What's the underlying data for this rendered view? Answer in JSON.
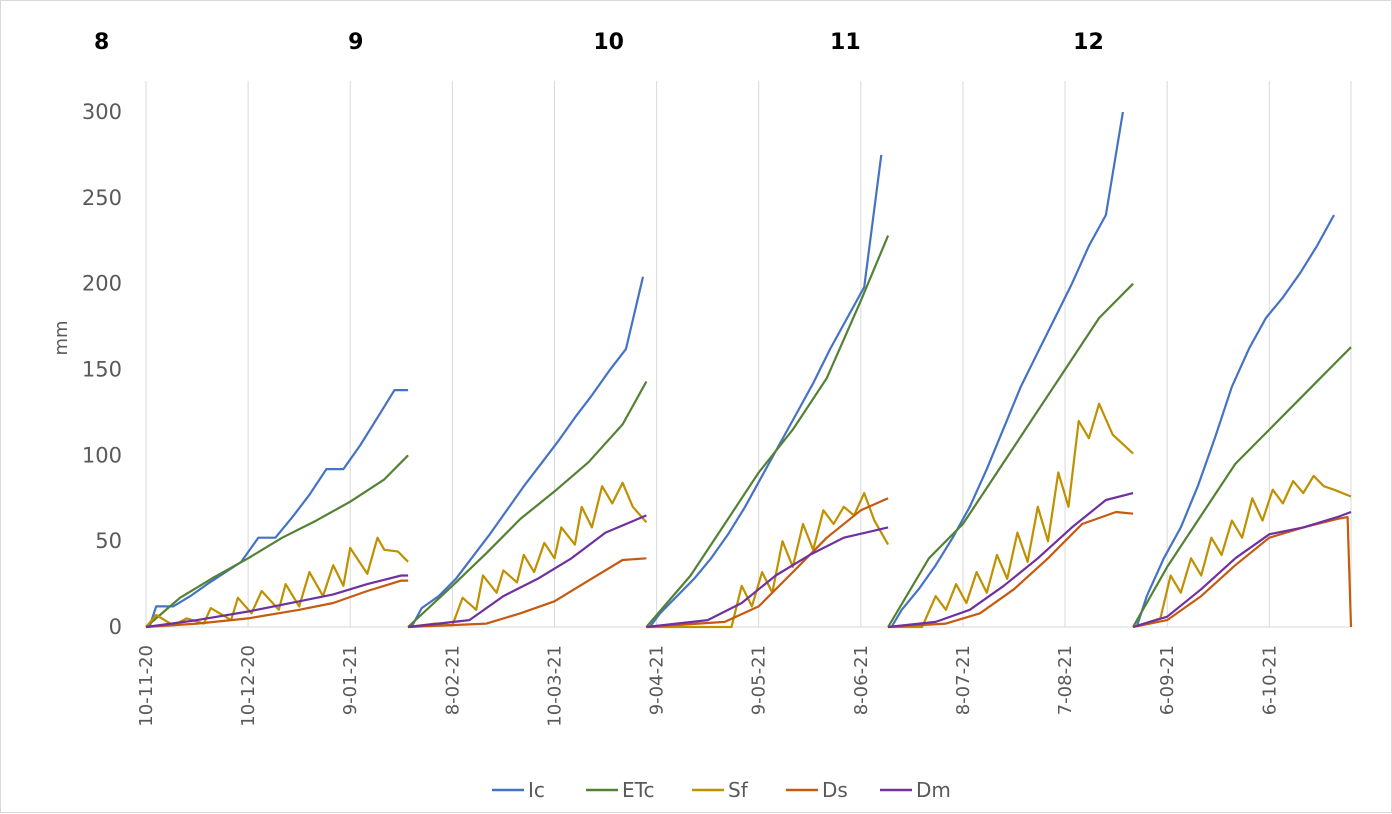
{
  "chart_data": {
    "type": "line",
    "ylabel": "mm",
    "ylim": [
      0,
      300
    ],
    "y_ticks": [
      "0",
      "50",
      "100",
      "150",
      "200",
      "250",
      "300"
    ],
    "x_tick_labels": [
      "10-11-20",
      "10-12-20",
      "9-01-21",
      "8-02-21",
      "10-03-21",
      "9-04-21",
      "9-05-21",
      "8-06-21",
      "8-07-21",
      "7-08-21",
      "6-09-21",
      "6-10-21"
    ],
    "x_tick_days": [
      0,
      30,
      60,
      90,
      120,
      150,
      180,
      210,
      240,
      270,
      300,
      330
    ],
    "x_range_days": [
      0,
      354
    ],
    "gridlines": "vertical",
    "legend_position": "bottom",
    "season_labels": [
      "8",
      "9",
      "10",
      "11",
      "12"
    ],
    "series_colors": {
      "Ic": "#4472c4",
      "ETc": "#548235",
      "Sf": "#bf9000",
      "Ds": "#c55a11",
      "Dm": "#7030a0"
    },
    "segments": [
      {
        "season": "8",
        "x_days": [
          0,
          77
        ],
        "series": [
          {
            "name": "Ic",
            "x": [
              1,
              3,
              8,
              13,
              18,
              28,
              33,
              38,
              43,
              48,
              53,
              58,
              63,
              68,
              73,
              77
            ],
            "values": [
              0,
              12,
              12,
              18,
              25,
              38,
              52,
              52,
              64,
              77,
              92,
              92,
              106,
              122,
              138,
              138
            ]
          },
          {
            "name": "ETc",
            "x": [
              0,
              10,
              20,
              30,
              40,
              50,
              60,
              70,
              77
            ],
            "values": [
              0,
              17,
              29,
              40,
              52,
              62,
              73,
              86,
              100
            ]
          },
          {
            "name": "Sf",
            "x": [
              0,
              3,
              8,
              12,
              17,
              19,
              25,
              27,
              31,
              34,
              39,
              41,
              45,
              48,
              52,
              55,
              58,
              60,
              65,
              68,
              70,
              74,
              77
            ],
            "values": [
              0,
              7,
              1,
              5,
              2,
              11,
              4,
              17,
              8,
              21,
              10,
              25,
              12,
              32,
              18,
              36,
              24,
              46,
              31,
              52,
              45,
              44,
              38
            ]
          },
          {
            "name": "Ds",
            "x": [
              0,
              15,
              30,
              45,
              55,
              65,
              75,
              77
            ],
            "values": [
              0,
              2,
              5,
              10,
              14,
              21,
              27,
              27
            ]
          },
          {
            "name": "Dm",
            "x": [
              0,
              15,
              30,
              45,
              55,
              65,
              75,
              77
            ],
            "values": [
              0,
              4,
              9,
              15,
              19,
              25,
              30,
              30
            ]
          }
        ]
      },
      {
        "season": "9",
        "x_days": [
          77,
          147
        ],
        "series": [
          {
            "name": "Ic",
            "x": [
              78,
              81,
              86,
              91,
              96,
              101,
              106,
              111,
              116,
              121,
              126,
              131,
              136,
              141,
              146
            ],
            "values": [
              0,
              11,
              18,
              28,
              41,
              54,
              68,
              82,
              95,
              108,
              122,
              135,
              149,
              162,
              204
            ]
          },
          {
            "name": "ETc",
            "x": [
              77,
              90,
              100,
              110,
              120,
              130,
              140,
              147
            ],
            "values": [
              0,
              24,
              43,
              63,
              79,
              96,
              118,
              143
            ]
          },
          {
            "name": "Sf",
            "x": [
              77,
              85,
              90,
              93,
              97,
              99,
              103,
              105,
              109,
              111,
              114,
              117,
              120,
              122,
              126,
              128,
              131,
              134,
              137,
              140,
              143,
              147
            ],
            "values": [
              0,
              2,
              1,
              17,
              10,
              30,
              20,
              33,
              26,
              42,
              32,
              49,
              40,
              58,
              48,
              70,
              58,
              82,
              72,
              84,
              70,
              61
            ]
          },
          {
            "name": "Ds",
            "x": [
              77,
              100,
              110,
              120,
              130,
              140,
              147
            ],
            "values": [
              0,
              2,
              8,
              15,
              27,
              39,
              40
            ]
          },
          {
            "name": "Dm",
            "x": [
              77,
              95,
              105,
              115,
              125,
              135,
              147
            ],
            "values": [
              0,
              4,
              18,
              28,
              40,
              55,
              65
            ]
          }
        ]
      },
      {
        "season": "10",
        "x_days": [
          147,
          218
        ],
        "series": [
          {
            "name": "Ic",
            "x": [
              148,
              151,
              156,
              161,
              166,
              171,
              176,
              181,
              186,
              191,
              196,
              201,
              206,
              211,
              216
            ],
            "values": [
              0,
              8,
              18,
              28,
              40,
              54,
              70,
              88,
              106,
              124,
              142,
              162,
              180,
              198,
              275
            ]
          },
          {
            "name": "ETc",
            "x": [
              147,
              160,
              170,
              180,
              190,
              200,
              210,
              218
            ],
            "values": [
              0,
              30,
              60,
              90,
              115,
              145,
              190,
              228
            ]
          },
          {
            "name": "Sf",
            "x": [
              147,
              172,
              175,
              178,
              181,
              184,
              187,
              190,
              193,
              196,
              199,
              202,
              205,
              208,
              211,
              214,
              218
            ],
            "values": [
              0,
              0,
              24,
              12,
              32,
              20,
              50,
              35,
              60,
              45,
              68,
              60,
              70,
              65,
              78,
              62,
              48
            ]
          },
          {
            "name": "Ds",
            "x": [
              147,
              170,
              180,
              190,
              200,
              210,
              218
            ],
            "values": [
              0,
              3,
              12,
              32,
              52,
              68,
              75
            ]
          },
          {
            "name": "Dm",
            "x": [
              147,
              165,
              175,
              185,
              195,
              205,
              218
            ],
            "values": [
              0,
              4,
              14,
              30,
              42,
              52,
              58
            ]
          }
        ]
      },
      {
        "season": "11",
        "x_days": [
          218,
          290
        ],
        "series": [
          {
            "name": "Ic",
            "x": [
              219,
              222,
              227,
              232,
              237,
              242,
              247,
              252,
              257,
              262,
              267,
              272,
              277,
              282,
              287
            ],
            "values": [
              0,
              10,
              22,
              36,
              52,
              70,
              92,
              116,
              140,
              160,
              180,
              200,
              222,
              240,
              300
            ]
          },
          {
            "name": "ETc",
            "x": [
              218,
              230,
              240,
              250,
              260,
              270,
              280,
              290
            ],
            "values": [
              0,
              40,
              60,
              90,
              120,
              150,
              180,
              200
            ]
          },
          {
            "name": "Sf",
            "x": [
              218,
              228,
              232,
              235,
              238,
              241,
              244,
              247,
              250,
              253,
              256,
              259,
              262,
              265,
              268,
              271,
              274,
              277,
              280,
              284,
              290
            ],
            "values": [
              0,
              0,
              18,
              10,
              25,
              14,
              32,
              20,
              42,
              28,
              55,
              38,
              70,
              50,
              90,
              70,
              120,
              110,
              130,
              112,
              101
            ]
          },
          {
            "name": "Ds",
            "x": [
              218,
              235,
              245,
              255,
              265,
              275,
              285,
              290
            ],
            "values": [
              0,
              2,
              8,
              22,
              40,
              60,
              67,
              66
            ]
          },
          {
            "name": "Dm",
            "x": [
              218,
              232,
              242,
              252,
              262,
              272,
              282,
              290
            ],
            "values": [
              0,
              3,
              10,
              24,
              40,
              58,
              74,
              78
            ]
          }
        ]
      },
      {
        "season": "12",
        "x_days": [
          290,
          354
        ],
        "series": [
          {
            "name": "Ic",
            "x": [
              291,
              294,
              299,
              304,
              309,
              314,
              319,
              324,
              329,
              334,
              339,
              344,
              349
            ],
            "values": [
              0,
              18,
              40,
              58,
              82,
              110,
              140,
              162,
              180,
              192,
              206,
              222,
              240
            ]
          },
          {
            "name": "ETc",
            "x": [
              290,
              300,
              310,
              320,
              330,
              340,
              350,
              354
            ],
            "values": [
              0,
              35,
              65,
              95,
              115,
              135,
              155,
              163
            ]
          },
          {
            "name": "Sf",
            "x": [
              290,
              298,
              301,
              304,
              307,
              310,
              313,
              316,
              319,
              322,
              325,
              328,
              331,
              334,
              337,
              340,
              343,
              346,
              349,
              354
            ],
            "values": [
              0,
              5,
              30,
              20,
              40,
              30,
              52,
              42,
              62,
              52,
              75,
              62,
              80,
              72,
              85,
              78,
              88,
              82,
              80,
              76
            ]
          },
          {
            "name": "Ds",
            "x": [
              290,
              300,
              310,
              320,
              330,
              340,
              350,
              353,
              354
            ],
            "values": [
              0,
              4,
              18,
              36,
              52,
              58,
              63,
              64,
              0
            ]
          },
          {
            "name": "Dm",
            "x": [
              290,
              300,
              310,
              320,
              330,
              340,
              350,
              354
            ],
            "values": [
              0,
              6,
              22,
              40,
              54,
              58,
              64,
              67
            ]
          }
        ]
      }
    ]
  },
  "legend": {
    "items": [
      {
        "label": "Ic",
        "color": "#4472c4"
      },
      {
        "label": "ETc",
        "color": "#548235"
      },
      {
        "label": "Sf",
        "color": "#bf9000"
      },
      {
        "label": "Ds",
        "color": "#c55a11"
      },
      {
        "label": "Dm",
        "color": "#7030a0"
      }
    ]
  }
}
